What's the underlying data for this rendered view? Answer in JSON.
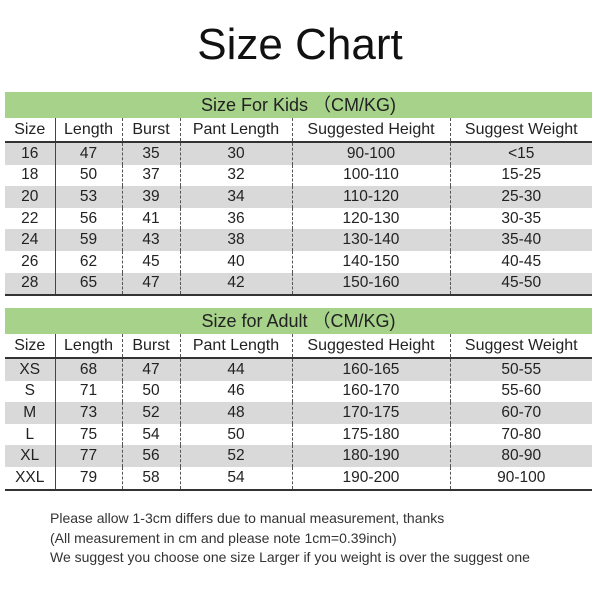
{
  "title": "Size Chart",
  "columns": [
    "Size",
    "Length",
    "Burst",
    "Pant Length",
    "Suggested Height",
    "Suggest Weight"
  ],
  "accent_color": "#a6d28a",
  "kids": {
    "heading": "Size For Kids （CM/KG)",
    "rows": [
      [
        "16",
        "47",
        "35",
        "30",
        "90-100",
        "<15"
      ],
      [
        "18",
        "50",
        "37",
        "32",
        "100-110",
        "15-25"
      ],
      [
        "20",
        "53",
        "39",
        "34",
        "110-120",
        "25-30"
      ],
      [
        "22",
        "56",
        "41",
        "36",
        "120-130",
        "30-35"
      ],
      [
        "24",
        "59",
        "43",
        "38",
        "130-140",
        "35-40"
      ],
      [
        "26",
        "62",
        "45",
        "40",
        "140-150",
        "40-45"
      ],
      [
        "28",
        "65",
        "47",
        "42",
        "150-160",
        "45-50"
      ]
    ]
  },
  "adult": {
    "heading": "Size for Adult （CM/KG)",
    "rows": [
      [
        "XS",
        "68",
        "47",
        "44",
        "160-165",
        "50-55"
      ],
      [
        "S",
        "71",
        "50",
        "46",
        "160-170",
        "55-60"
      ],
      [
        "M",
        "73",
        "52",
        "48",
        "170-175",
        "60-70"
      ],
      [
        "L",
        "75",
        "54",
        "50",
        "175-180",
        "70-80"
      ],
      [
        "XL",
        "77",
        "56",
        "52",
        "180-190",
        "80-90"
      ],
      [
        "XXL",
        "79",
        "58",
        "54",
        "190-200",
        "90-100"
      ]
    ]
  },
  "notes": [
    "Please allow 1-3cm differs due to manual measurement, thanks",
    "(All measurement in cm and please note 1cm=0.39inch)",
    "We suggest you choose one size Larger if you weight is over the suggest one"
  ]
}
